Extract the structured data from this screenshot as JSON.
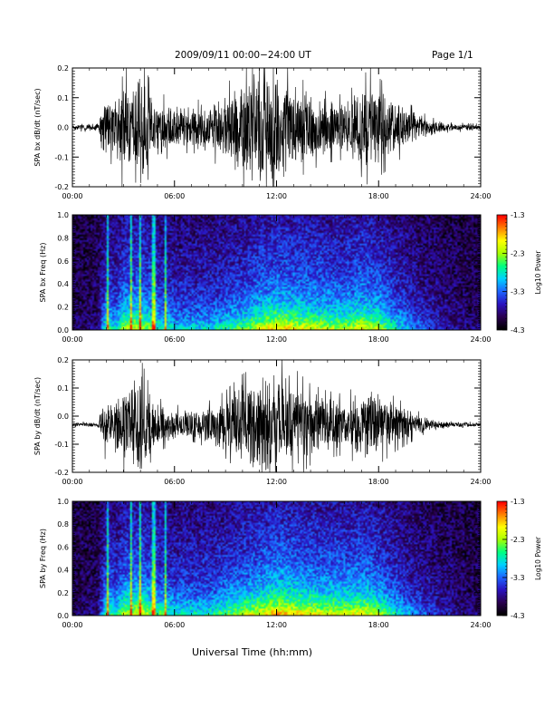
{
  "header": {
    "title": "2009/09/11  00:00−24:00 UT",
    "page": "Page 1/1"
  },
  "colors": {
    "trace": "#000000",
    "colormap": [
      "#000000",
      "#2a0050",
      "#2a12c0",
      "#1e64ff",
      "#00d2ff",
      "#00ff80",
      "#a8ff00",
      "#ffff00",
      "#ff8000",
      "#ff0000"
    ]
  },
  "chart_data": [
    {
      "type": "line",
      "name": "bx-waveform",
      "ylabel": "SPA bx dB/dt (nT/sec)",
      "xlabel": "",
      "xlim": [
        0,
        24
      ],
      "ylim": [
        -0.2,
        0.2
      ],
      "x_ticks": [
        "00:00",
        "06:00",
        "12:00",
        "18:00",
        "24:00"
      ],
      "y_ticks": [
        "-0.2",
        "-0.1",
        "0.0",
        "0.1",
        "0.2"
      ],
      "y_tick_values": [
        -0.2,
        -0.1,
        0.0,
        0.1,
        0.2
      ],
      "baseline": 0.0,
      "envelope_hours": [
        0,
        1.5,
        2.0,
        2.5,
        3.0,
        3.5,
        4.0,
        4.5,
        5.0,
        6.0,
        7.0,
        8.0,
        9.0,
        10.0,
        11.0,
        11.5,
        12.0,
        12.5,
        13.0,
        14.0,
        15.0,
        16.0,
        17.0,
        17.5,
        18.0,
        19.0,
        20.0,
        21.0,
        22.0,
        24.0
      ],
      "envelope_amplitude": [
        0.01,
        0.015,
        0.12,
        0.09,
        0.2,
        0.12,
        0.2,
        0.14,
        0.1,
        0.08,
        0.07,
        0.09,
        0.12,
        0.17,
        0.2,
        0.2,
        0.18,
        0.2,
        0.15,
        0.12,
        0.1,
        0.09,
        0.14,
        0.17,
        0.14,
        0.1,
        0.06,
        0.03,
        0.015,
        0.01
      ]
    },
    {
      "type": "heatmap",
      "name": "bx-spectrogram",
      "ylabel": "SPA bx Freq (Hz)",
      "xlabel": "",
      "xlim": [
        0,
        24
      ],
      "ylim": [
        0,
        1.0
      ],
      "x_ticks": [
        "00:00",
        "06:00",
        "12:00",
        "18:00",
        "24:00"
      ],
      "y_ticks": [
        "0.0",
        "0.2",
        "0.4",
        "0.6",
        "0.8",
        "1.0"
      ],
      "y_tick_values": [
        0.0,
        0.2,
        0.4,
        0.6,
        0.8,
        1.0
      ],
      "colorbar": {
        "label": "Log10 Power",
        "range": [
          -4.3,
          -1.3
        ],
        "ticks": [
          "-1.3",
          "-2.3",
          "-3.3",
          "-4.3"
        ]
      },
      "activity_hours": [
        0,
        1.5,
        2.0,
        2.5,
        3.0,
        4.0,
        5.0,
        6.0,
        8.0,
        10.0,
        11.0,
        12.0,
        13.0,
        14.0,
        16.0,
        17.0,
        18.0,
        19.0,
        20.0,
        22.0,
        24.0
      ],
      "activity_level": [
        0.05,
        0.1,
        0.6,
        0.45,
        0.7,
        0.75,
        0.55,
        0.45,
        0.45,
        0.6,
        0.75,
        0.85,
        0.8,
        0.75,
        0.7,
        0.8,
        0.7,
        0.5,
        0.35,
        0.15,
        0.05
      ]
    },
    {
      "type": "line",
      "name": "by-waveform",
      "ylabel": "SPA by dB/dt (nT/sec)",
      "xlabel": "",
      "xlim": [
        0,
        24
      ],
      "ylim": [
        -0.2,
        0.2
      ],
      "x_ticks": [
        "00:00",
        "06:00",
        "12:00",
        "18:00",
        "24:00"
      ],
      "y_ticks": [
        "-0.2",
        "-0.1",
        "0.0",
        "0.1",
        "0.2"
      ],
      "y_tick_values": [
        -0.2,
        -0.1,
        0.0,
        0.1,
        0.2
      ],
      "baseline": -0.03,
      "envelope_hours": [
        0,
        1.5,
        2.0,
        2.5,
        3.0,
        3.5,
        4.0,
        4.5,
        5.0,
        6.0,
        7.0,
        8.0,
        9.0,
        10.0,
        11.0,
        11.5,
        12.0,
        12.5,
        13.0,
        14.0,
        15.0,
        16.0,
        17.0,
        17.5,
        18.0,
        19.0,
        20.0,
        21.0,
        22.0,
        24.0
      ],
      "envelope_amplitude": [
        0.008,
        0.01,
        0.12,
        0.08,
        0.16,
        0.1,
        0.2,
        0.12,
        0.08,
        0.06,
        0.05,
        0.07,
        0.1,
        0.15,
        0.18,
        0.2,
        0.19,
        0.2,
        0.17,
        0.12,
        0.1,
        0.09,
        0.13,
        0.16,
        0.12,
        0.08,
        0.05,
        0.02,
        0.01,
        0.008
      ]
    },
    {
      "type": "heatmap",
      "name": "by-spectrogram",
      "ylabel": "SPA by Freq (Hz)",
      "xlabel": "Universal Time (hh:mm)",
      "xlim": [
        0,
        24
      ],
      "ylim": [
        0,
        1.0
      ],
      "x_ticks": [
        "00:00",
        "06:00",
        "12:00",
        "18:00",
        "24:00"
      ],
      "y_ticks": [
        "0.0",
        "0.2",
        "0.4",
        "0.6",
        "0.8",
        "1.0"
      ],
      "y_tick_values": [
        0.0,
        0.2,
        0.4,
        0.6,
        0.8,
        1.0
      ],
      "colorbar": {
        "label": "Log10 Power",
        "range": [
          -4.3,
          -1.3
        ],
        "ticks": [
          "-1.3",
          "-2.3",
          "-3.3",
          "-4.3"
        ]
      },
      "activity_hours": [
        0,
        1.5,
        2.0,
        2.5,
        3.0,
        4.0,
        5.0,
        6.0,
        8.0,
        10.0,
        11.0,
        12.0,
        13.0,
        14.0,
        16.0,
        17.0,
        18.0,
        19.0,
        20.0,
        22.0,
        24.0
      ],
      "activity_level": [
        0.05,
        0.1,
        0.65,
        0.5,
        0.7,
        0.8,
        0.6,
        0.5,
        0.5,
        0.7,
        0.8,
        0.9,
        0.85,
        0.8,
        0.75,
        0.8,
        0.7,
        0.5,
        0.35,
        0.15,
        0.05
      ]
    }
  ]
}
